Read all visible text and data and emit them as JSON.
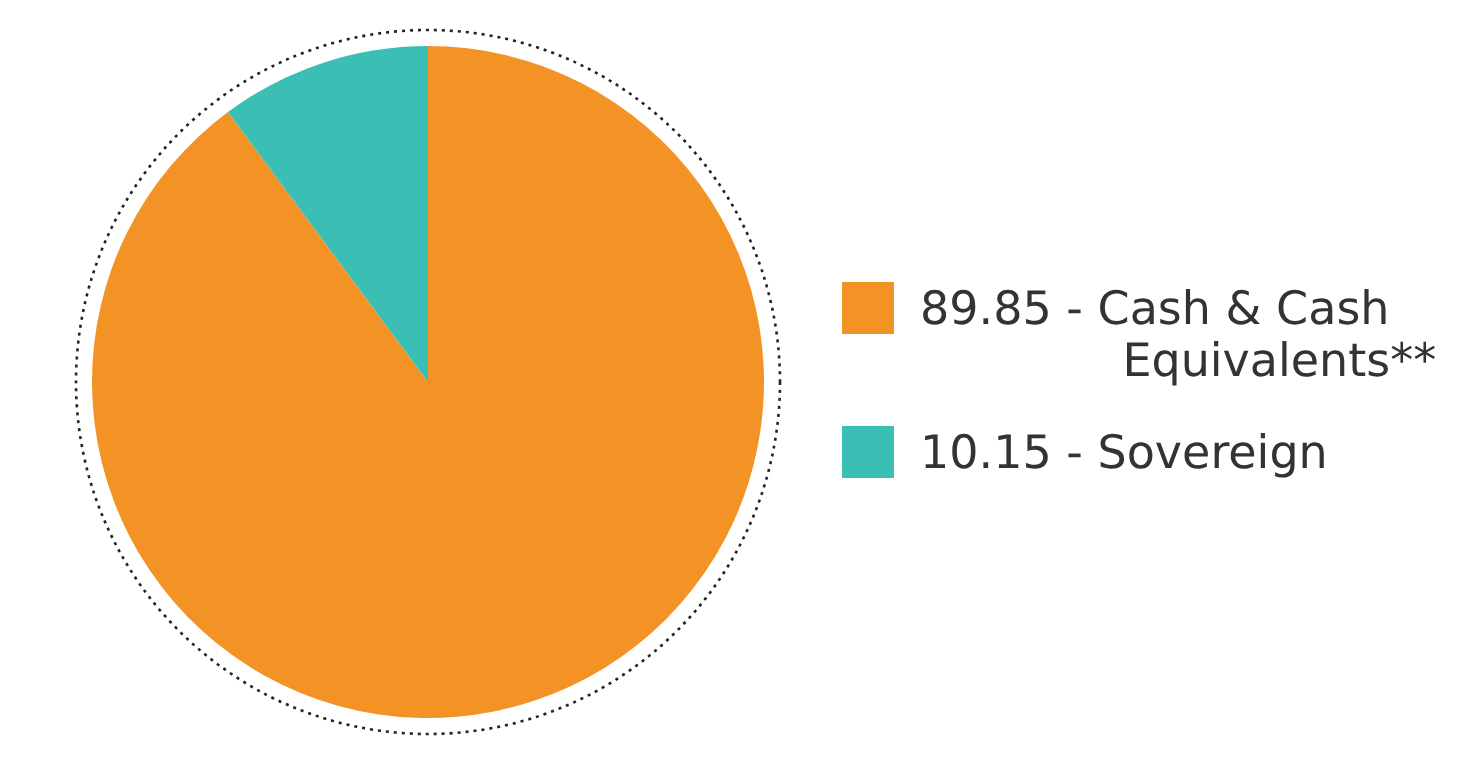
{
  "chart_data": {
    "type": "pie",
    "categories": [
      "89.85 - Cash & Cash Equivalents**",
      "10.15 - Sovereign"
    ],
    "values": [
      89.85,
      10.15
    ],
    "colors": [
      "#f39325",
      "#3bbfb5"
    ],
    "legend": "right"
  }
}
